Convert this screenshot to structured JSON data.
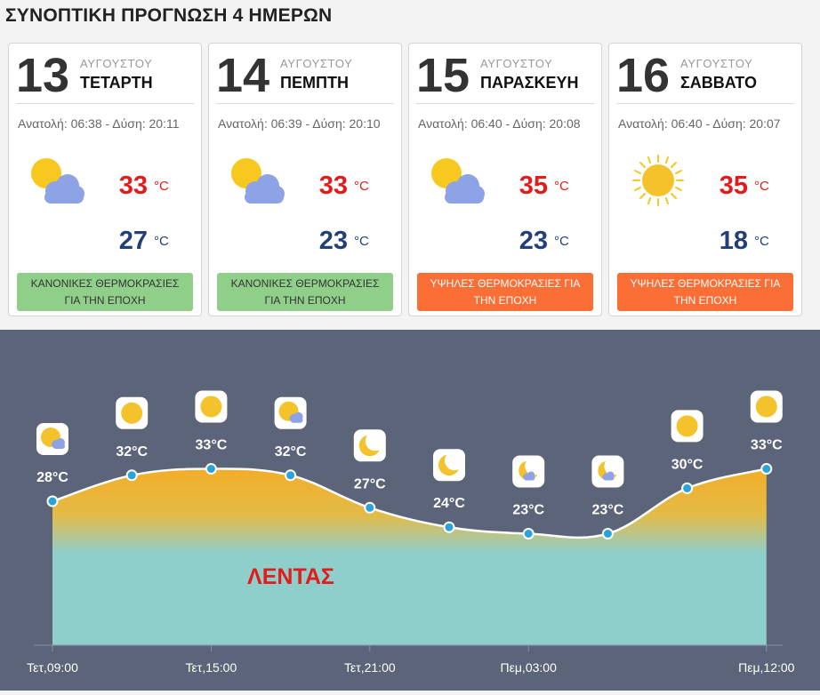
{
  "title": "ΣΥΝΟΠΤΙΚΗ ΠΡΟΓΝΩΣΗ 4 ΗΜΕΡΩΝ",
  "colors": {
    "max_temp": "#e41b1b",
    "min_temp": "#233f78",
    "badge_normal": "#8fcf8a",
    "badge_high": "#fb6e35",
    "chart_bg": "#5b6479",
    "area_top": "#f3ad28",
    "area_bottom": "#8fcfcb"
  },
  "days": [
    {
      "day": "13",
      "month": "ΑΥΓΟΥΣΤΟΥ",
      "weekday": "ΤΕΤΑΡΤΗ",
      "sun": "Ανατολή: 06:38 - Δύση: 20:11",
      "icon": "partly-cloudy-icon",
      "max": "33",
      "min": "27",
      "unit": "°C",
      "badge": "ΚΑΝΟΝΙΚΕΣ ΘΕΡΜΟΚΡΑΣΙΕΣ ΓΙΑ ΤΗΝ ΕΠΟΧΗ",
      "badge_color": "#8fcf8a"
    },
    {
      "day": "14",
      "month": "ΑΥΓΟΥΣΤΟΥ",
      "weekday": "ΠΕΜΠΤΗ",
      "sun": "Ανατολή: 06:39 - Δύση: 20:10",
      "icon": "partly-cloudy-icon",
      "max": "33",
      "min": "23",
      "unit": "°C",
      "badge": "ΚΑΝΟΝΙΚΕΣ ΘΕΡΜΟΚΡΑΣΙΕΣ ΓΙΑ ΤΗΝ ΕΠΟΧΗ",
      "badge_color": "#8fcf8a"
    },
    {
      "day": "15",
      "month": "ΑΥΓΟΥΣΤΟΥ",
      "weekday": "ΠΑΡΑΣΚΕΥΗ",
      "sun": "Ανατολή: 06:40 - Δύση: 20:08",
      "icon": "partly-cloudy-icon",
      "max": "35",
      "min": "23",
      "unit": "°C",
      "badge": "ΥΨΗΛΕΣ ΘΕΡΜΟΚΡΑΣΙΕΣ ΓΙΑ ΤΗΝ ΕΠΟΧΗ",
      "badge_color": "#fb6e35"
    },
    {
      "day": "16",
      "month": "ΑΥΓΟΥΣΤΟΥ",
      "weekday": "ΣΑΒΒΑΤΟ",
      "sun": "Ανατολή: 06:40 - Δύση: 20:07",
      "icon": "sun-icon",
      "max": "35",
      "min": "18",
      "unit": "°C",
      "badge": "ΥΨΗΛΕΣ ΘΕΡΜΟΚΡΑΣΙΕΣ ΓΙΑ ΤΗΝ ΕΠΟΧΗ",
      "badge_color": "#fb6e35"
    }
  ],
  "chart_data": {
    "type": "area",
    "location": "ΛΕΝΤΑΣ",
    "ylim": [
      10,
      40
    ],
    "points": [
      {
        "temp": 28,
        "label": "28°C",
        "icon": "partly-cloudy-day-icon"
      },
      {
        "temp": 32,
        "label": "32°C",
        "icon": "sun-icon"
      },
      {
        "temp": 33,
        "label": "33°C",
        "icon": "sun-icon"
      },
      {
        "temp": 32,
        "label": "32°C",
        "icon": "partly-cloudy-day-icon"
      },
      {
        "temp": 27,
        "label": "27°C",
        "icon": "moon-icon"
      },
      {
        "temp": 24,
        "label": "24°C",
        "icon": "moon-icon"
      },
      {
        "temp": 23,
        "label": "23°C",
        "icon": "partly-cloudy-night-icon"
      },
      {
        "temp": 23,
        "label": "23°C",
        "icon": "partly-cloudy-night-icon"
      },
      {
        "temp": 30,
        "label": "30°C",
        "icon": "sun-icon"
      },
      {
        "temp": 33,
        "label": "33°C",
        "icon": "sun-icon"
      }
    ],
    "x_ticks": [
      {
        "index": 0,
        "label": "Τετ,09:00"
      },
      {
        "index": 2,
        "label": "Τετ,15:00"
      },
      {
        "index": 4,
        "label": "Τετ,21:00"
      },
      {
        "index": 6,
        "label": "Πεμ,03:00"
      },
      {
        "index": 9,
        "label": "Πεμ,12:00"
      }
    ]
  }
}
